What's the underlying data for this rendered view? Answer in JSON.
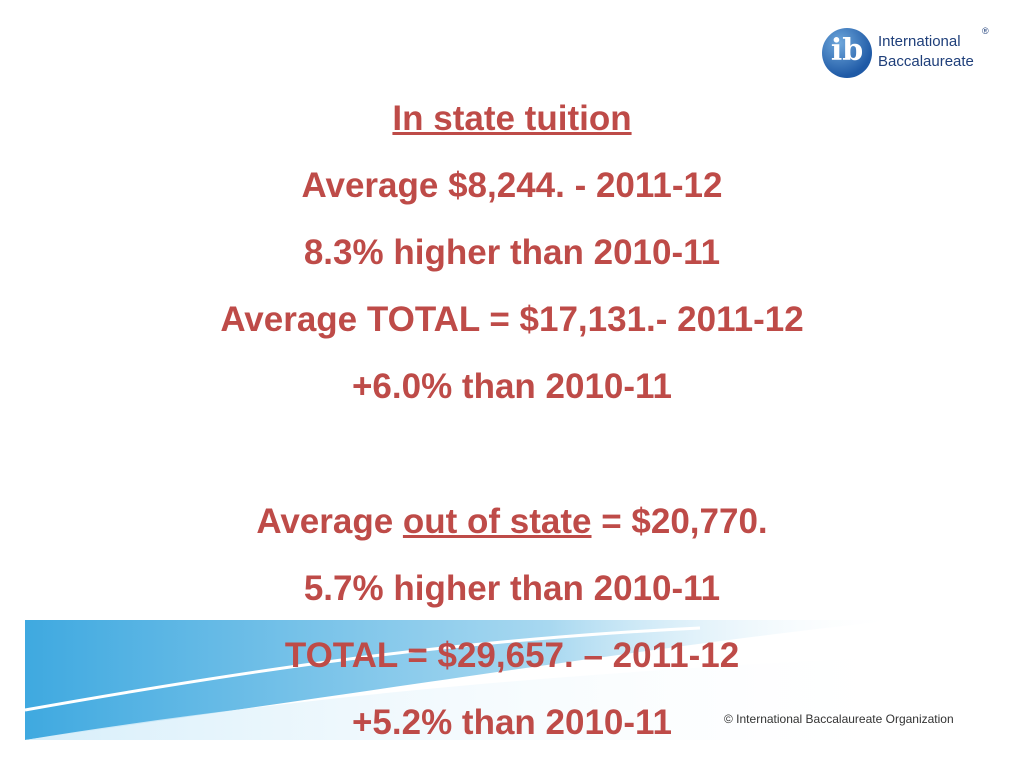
{
  "logo": {
    "mark": "ib",
    "line1": "International",
    "line2": "Baccalaureate",
    "registered": "®"
  },
  "in_state": [
    {
      "segments": [
        {
          "text": "In state tuition",
          "underline": true
        }
      ]
    },
    {
      "segments": [
        {
          "text": "Average $8,244. - 2011-12",
          "underline": false
        }
      ]
    },
    {
      "segments": [
        {
          "text": "8.3% higher than 2010-11",
          "underline": false
        }
      ]
    },
    {
      "segments": [
        {
          "text": "Average TOTAL = $17,131.- 2011-12",
          "underline": false
        }
      ]
    },
    {
      "segments": [
        {
          "text": "+6.0% than 2010-11",
          "underline": false
        }
      ]
    }
  ],
  "out_of_state": [
    {
      "segments": [
        {
          "text": "Average ",
          "underline": false
        },
        {
          "text": "out of state",
          "underline": true
        },
        {
          "text": " = $20,770.",
          "underline": false
        }
      ]
    },
    {
      "segments": [
        {
          "text": "5.7% higher than 2010-11",
          "underline": false
        }
      ]
    },
    {
      "segments": [
        {
          "text": "TOTAL = $29,657. – 2011-12",
          "underline": false
        }
      ]
    },
    {
      "segments": [
        {
          "text": "+5.2% than 2010-11",
          "underline": false
        }
      ]
    }
  ],
  "footer": "© International Baccalaureate Organization"
}
